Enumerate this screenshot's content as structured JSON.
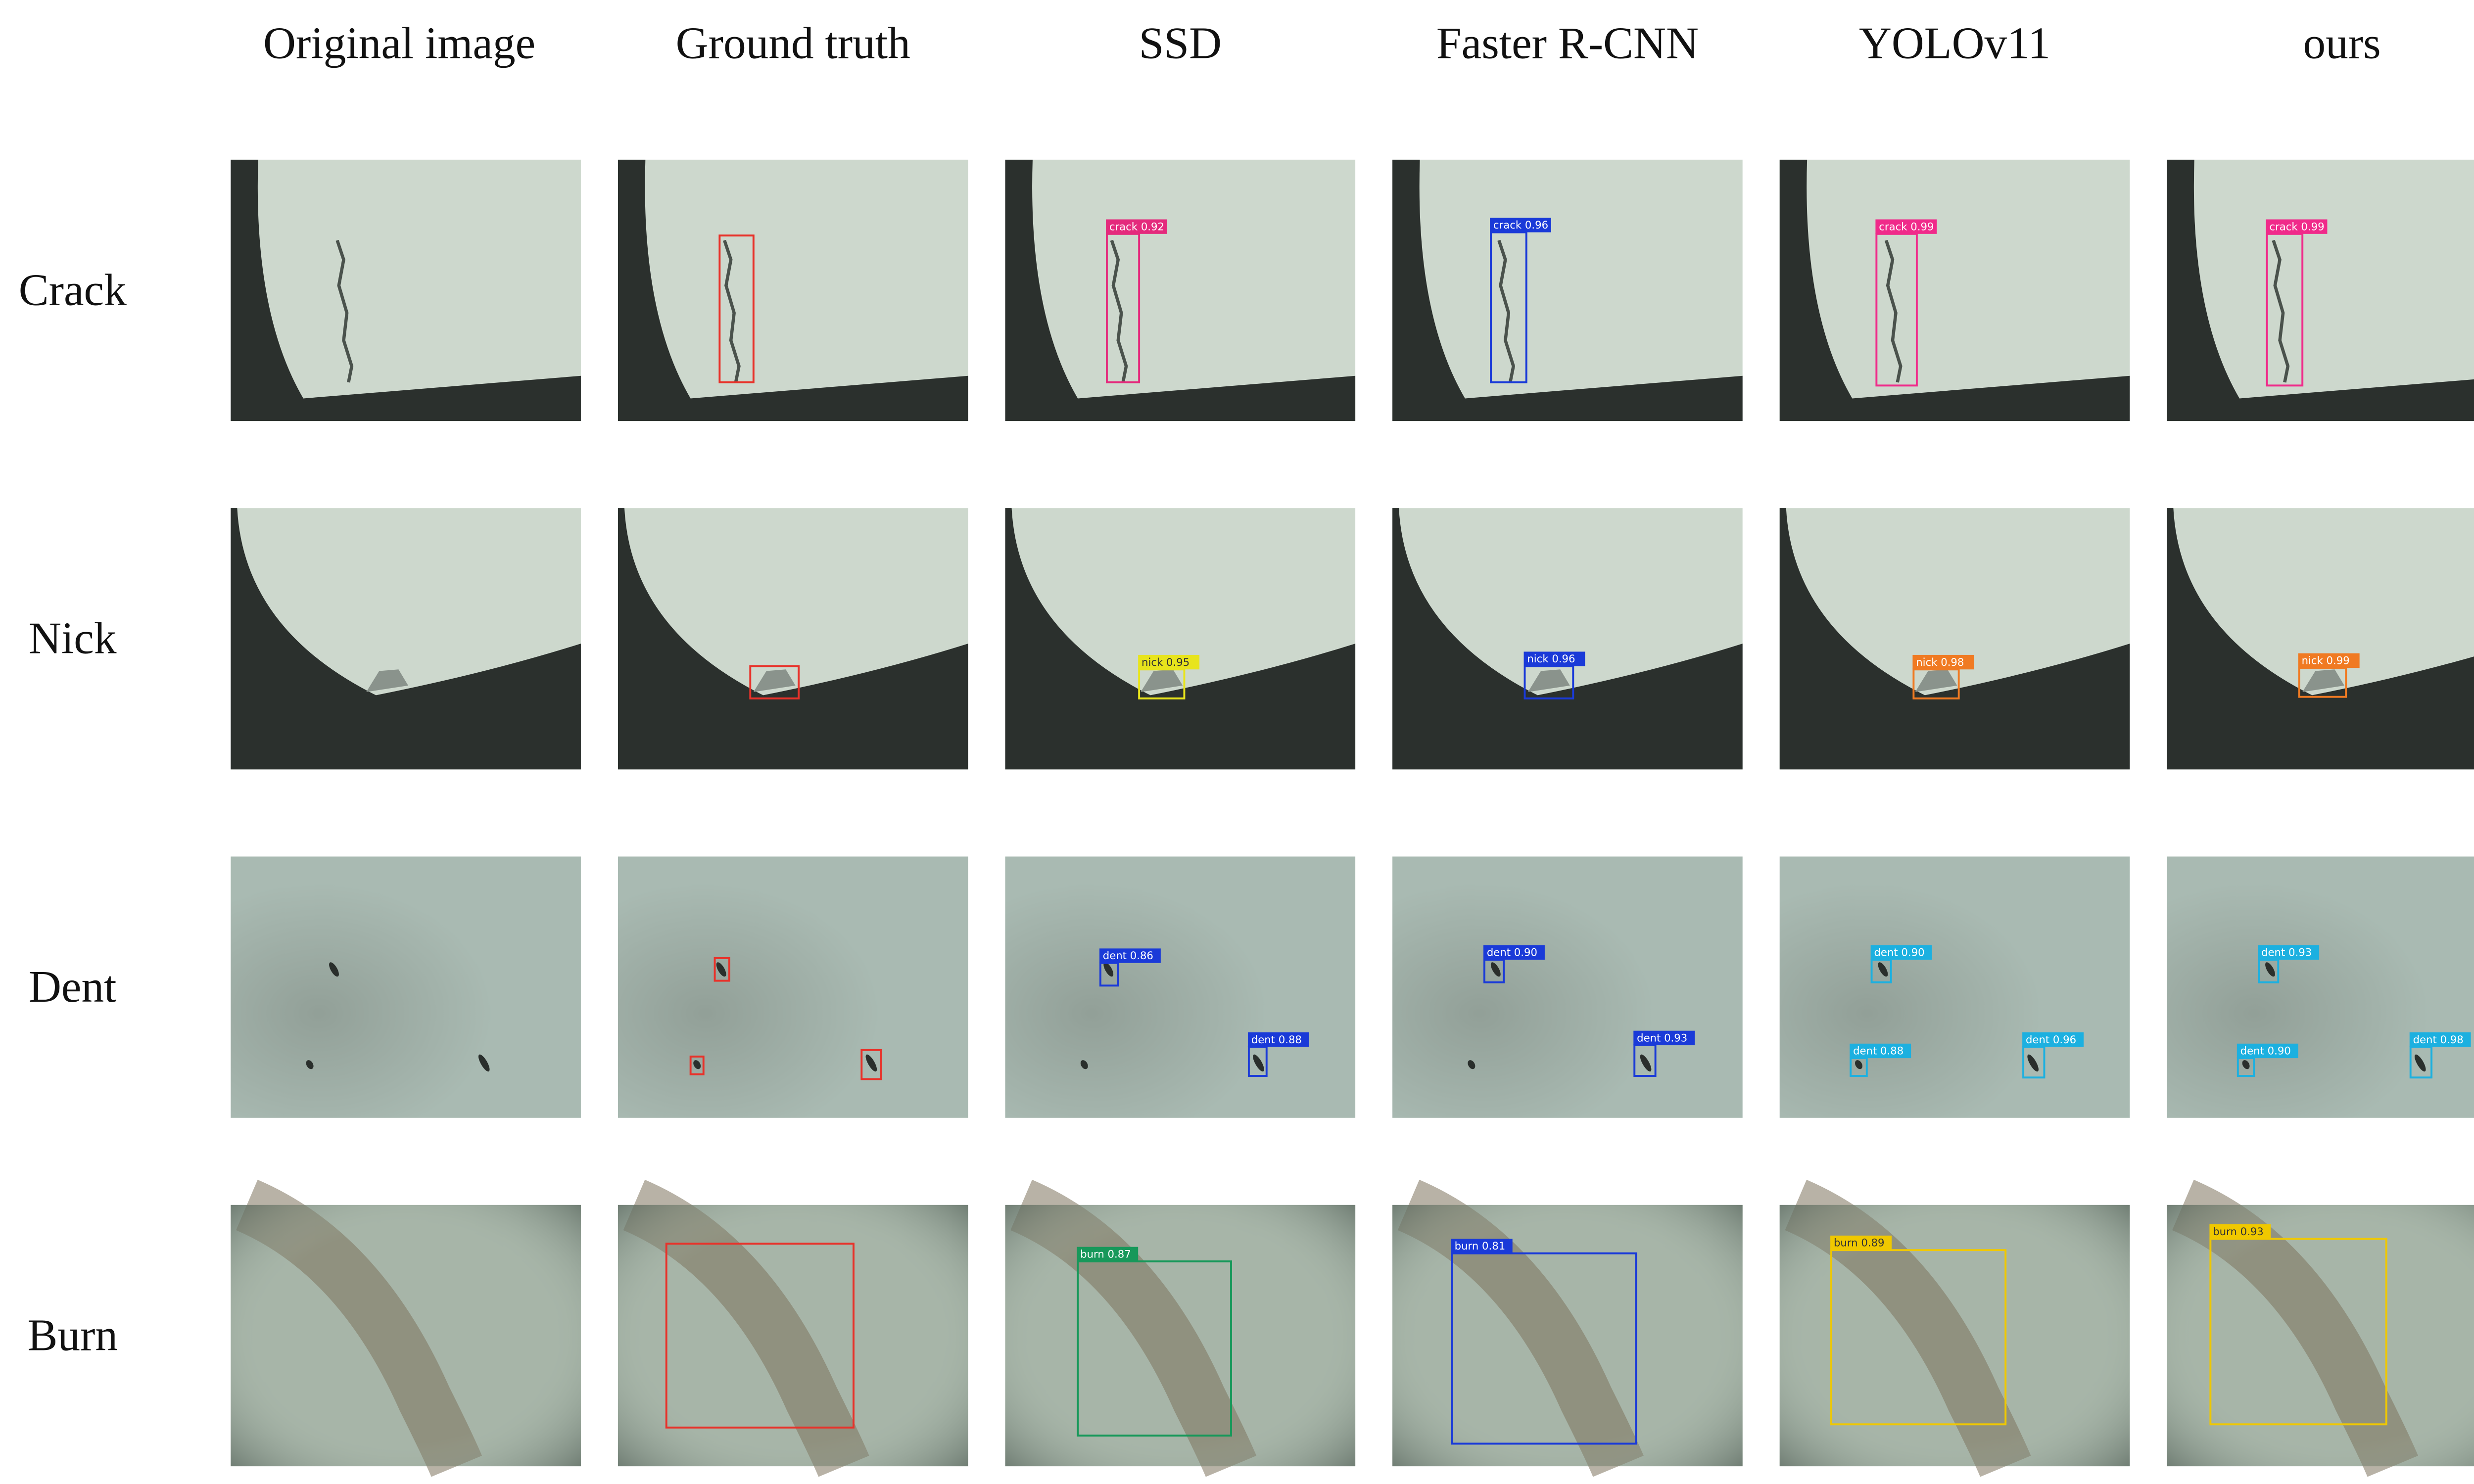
{
  "columns": [
    "Original image",
    "Ground truth",
    "SSD",
    "Faster R-CNN",
    "YOLOv11",
    "ours"
  ],
  "rows": [
    {
      "label": "Crack",
      "detections": [
        [
          "crack 0.92"
        ],
        [
          "crack 0.96"
        ],
        [
          "crack 0.99"
        ],
        [
          "crack 0.99"
        ]
      ]
    },
    {
      "label": "Nick",
      "detections": [
        [
          "nick 0.95"
        ],
        [
          "nick 0.96"
        ],
        [
          "nick 0.98"
        ],
        [
          "nick 0.99"
        ]
      ]
    },
    {
      "label": "Dent",
      "detections": [
        [
          "dent 0.86",
          "dent 0.88"
        ],
        [
          "dent 0.90",
          "dent 0.93"
        ],
        [
          "dent 0.90",
          "dent 0.88",
          "dent 0.96"
        ],
        [
          "dent 0.93",
          "dent 0.90",
          "dent 0.98"
        ]
      ]
    },
    {
      "label": "Burn",
      "detections": [
        [
          "burn 0.87"
        ],
        [
          "burn 0.81"
        ],
        [
          "burn 0.89"
        ],
        [
          "burn 0.93"
        ]
      ]
    }
  ]
}
